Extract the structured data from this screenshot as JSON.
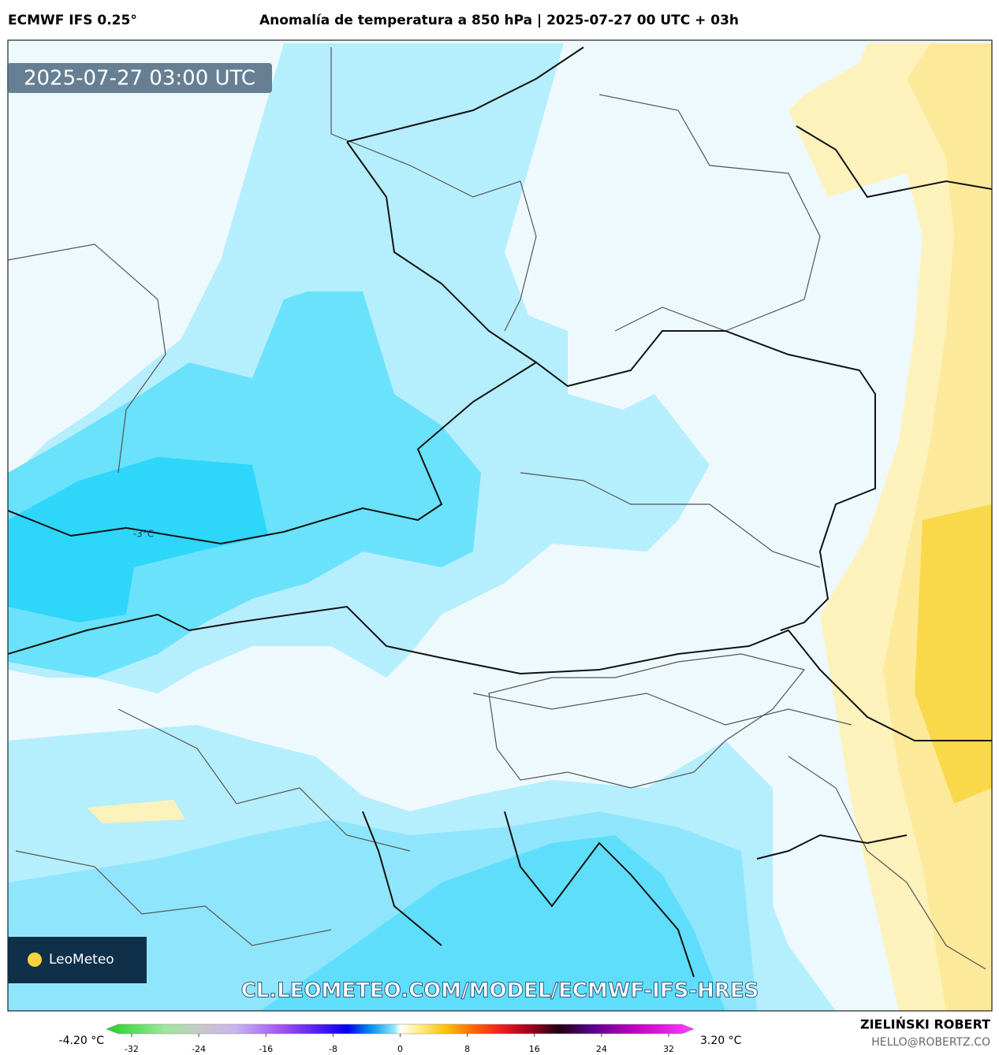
{
  "header": {
    "model": "ECMWF IFS 0.25°",
    "title": "Anomalía de temperatura a 850 hPa | 2025-07-27 00 UTC + 03h"
  },
  "map": {
    "timestamp": "2025-07-27 03:00 UTC",
    "contour_label": "-3°C",
    "logo": "LeoMeteo",
    "watermark": "CL.LEOMETEO.COM/MODEL/ECMWF-IFS-HRES"
  },
  "colorbar": {
    "min_label": "-4.20 °C",
    "max_label": "3.20 °C",
    "range": [
      -35,
      35
    ],
    "ticks": [
      -32,
      -24,
      -16,
      -8,
      0,
      8,
      16,
      24,
      32
    ]
  },
  "footer": {
    "author": "ZIELIŃSKI ROBERT",
    "email": "HELLO@ROBERTZ.CO"
  }
}
